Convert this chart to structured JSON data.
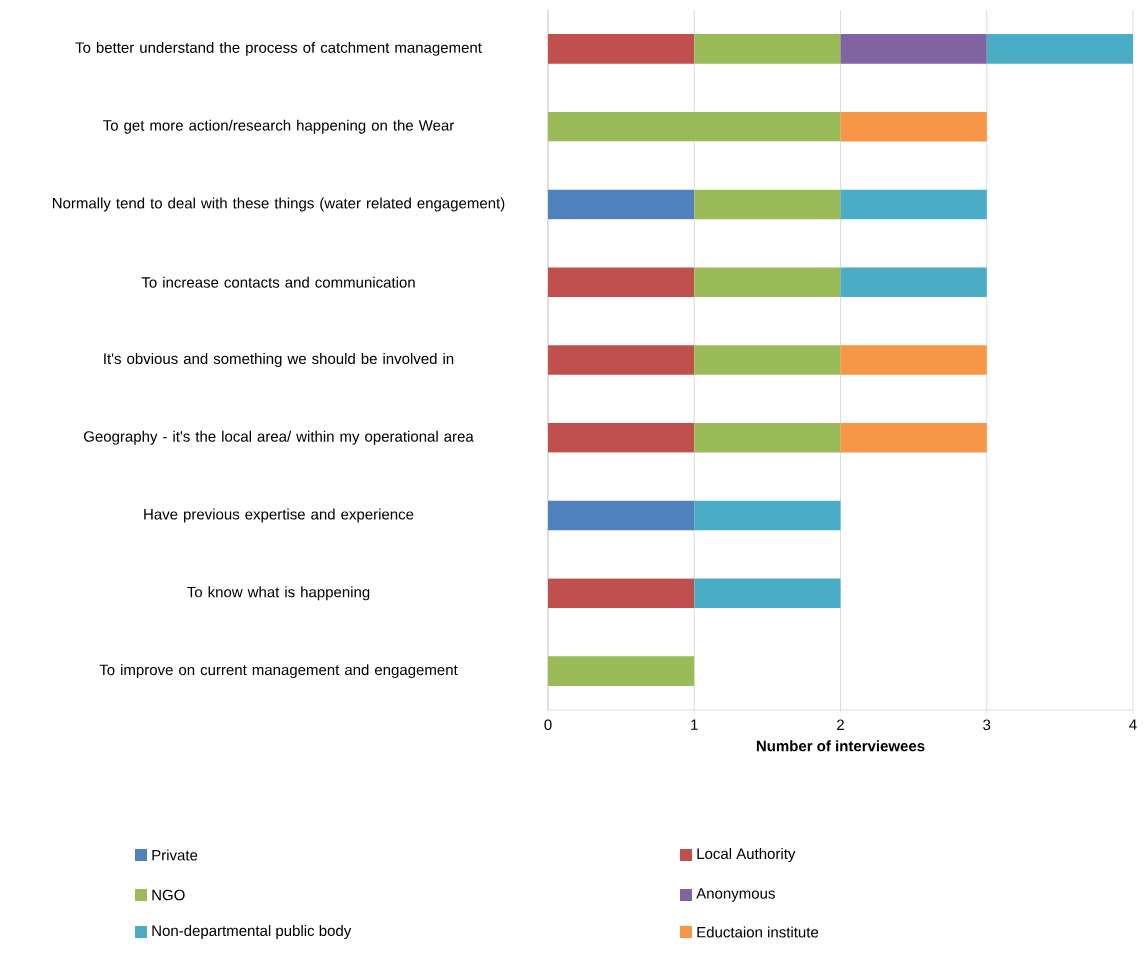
{
  "chart_data": {
    "type": "bar",
    "orientation": "horizontal",
    "stacked": true,
    "categories": [
      "To better understand the process of catchment management",
      "To get more action/research happening on the Wear",
      "Normally tend to deal with these things (water related engagement)",
      "To increase contacts and communication",
      "It's obvious and something we should be involved in",
      "Geography - it's the local area/ within my operational area",
      "Have previous expertise and experience",
      "To know what is happening",
      "To improve on current management and engagement"
    ],
    "series": [
      {
        "name": "Private",
        "color": "#4f81bd",
        "values": [
          null,
          null,
          1,
          null,
          null,
          null,
          1,
          null,
          null
        ]
      },
      {
        "name": "Local Authority",
        "color": "#c0504d",
        "values": [
          1,
          null,
          null,
          1,
          1,
          1,
          null,
          1,
          null
        ]
      },
      {
        "name": "NGO",
        "color": "#9bbb59",
        "values": [
          1,
          2,
          1,
          1,
          1,
          1,
          null,
          null,
          1
        ]
      },
      {
        "name": "Anonymous",
        "color": "#8064a2",
        "values": [
          1,
          null,
          null,
          null,
          null,
          null,
          null,
          null,
          null
        ]
      },
      {
        "name": "Non-departmental public body",
        "color": "#4bacc6",
        "values": [
          1,
          null,
          1,
          1,
          null,
          null,
          1,
          1,
          null
        ]
      },
      {
        "name": "Eductaion institute",
        "color": "#f79646",
        "values": [
          null,
          1,
          null,
          null,
          1,
          1,
          null,
          null,
          null
        ]
      }
    ],
    "xlabel": "Number of interviewees",
    "xlim": [
      0,
      4
    ],
    "xticks": [
      0,
      1,
      2,
      3,
      4
    ],
    "grid": "x",
    "legend": "bottom"
  }
}
